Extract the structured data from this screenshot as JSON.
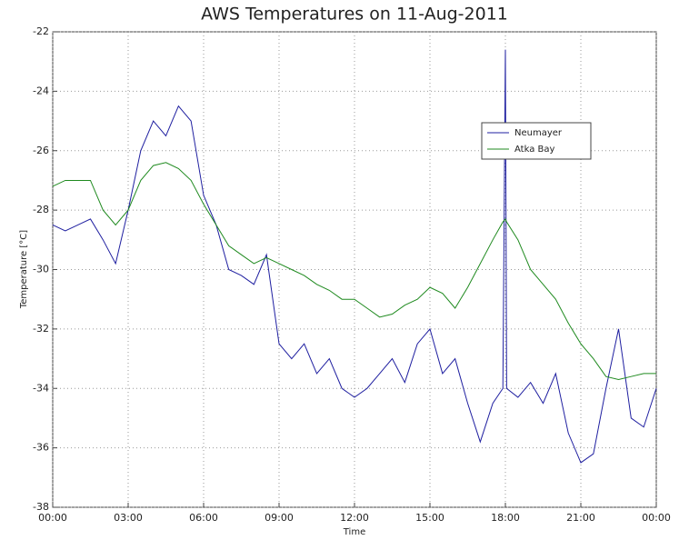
{
  "chart_data": {
    "type": "line",
    "title": "AWS Temperatures on 11-Aug-2011",
    "xlabel": "Time",
    "ylabel": "Temperature [°C]",
    "x": [
      0,
      0.5,
      1,
      1.5,
      2,
      2.5,
      3,
      3.5,
      4,
      4.5,
      5,
      5.5,
      6,
      6.5,
      7,
      7.5,
      8,
      8.5,
      9,
      9.5,
      10,
      10.5,
      11,
      11.5,
      12,
      12.5,
      13,
      13.5,
      14,
      14.5,
      15,
      15.5,
      16,
      16.5,
      17,
      17.5,
      17.9,
      18,
      18.05,
      18.5,
      19,
      19.5,
      20,
      20.5,
      21,
      21.5,
      22,
      22.5,
      23,
      23.5,
      24
    ],
    "series": [
      {
        "name": "Neumayer",
        "color": "#1f1fa0",
        "values": [
          -28.5,
          -28.7,
          -28.5,
          -28.3,
          -29.0,
          -29.8,
          -28.0,
          -26.0,
          -25.0,
          -25.5,
          -24.5,
          -25.0,
          -27.5,
          -28.5,
          -30.0,
          -30.2,
          -30.5,
          -29.5,
          -32.5,
          -33.0,
          -32.5,
          -33.5,
          -33.0,
          -34.0,
          -34.3,
          -34.0,
          -33.5,
          -33.0,
          -33.8,
          -32.5,
          -32.0,
          -33.5,
          -33.0,
          -34.5,
          -35.8,
          -34.5,
          -34.0,
          -22.6,
          -34.0,
          -34.3,
          -33.8,
          -34.5,
          -33.5,
          -35.5,
          -36.5,
          -36.2,
          -34.0,
          -32.0,
          -35.0,
          -35.3,
          -34.0
        ]
      },
      {
        "name": "Atka Bay",
        "color": "#1f8a1f",
        "values": [
          -27.2,
          -27.0,
          -27.0,
          -27.0,
          -28.0,
          -28.5,
          -28.0,
          -27.0,
          -26.5,
          -26.4,
          -26.6,
          -27.0,
          -27.8,
          -28.5,
          -29.2,
          -29.5,
          -29.8,
          -29.6,
          -29.8,
          -30.0,
          -30.2,
          -30.5,
          -30.7,
          -31.0,
          -31.0,
          -31.3,
          -31.6,
          -31.5,
          -31.2,
          -31.0,
          -30.6,
          -30.8,
          -31.3,
          -30.6,
          -29.8,
          -29.0,
          -28.4,
          -28.3,
          -28.4,
          -29.0,
          -30.0,
          -30.5,
          -31.0,
          -31.8,
          -32.5,
          -33.0,
          -33.6,
          -33.7,
          -33.6,
          -33.5,
          -33.5
        ]
      }
    ],
    "xlim": [
      0,
      24
    ],
    "xticks": [
      {
        "value": 0,
        "label": "00:00"
      },
      {
        "value": 3,
        "label": "03:00"
      },
      {
        "value": 6,
        "label": "06:00"
      },
      {
        "value": 9,
        "label": "09:00"
      },
      {
        "value": 12,
        "label": "12:00"
      },
      {
        "value": 15,
        "label": "15:00"
      },
      {
        "value": 18,
        "label": "18:00"
      },
      {
        "value": 21,
        "label": "21:00"
      },
      {
        "value": 24,
        "label": "00:00"
      }
    ],
    "ylim": [
      -38,
      -22
    ],
    "yticks": [
      -38,
      -36,
      -34,
      -32,
      -30,
      -28,
      -26,
      -24,
      -22
    ],
    "grid": true
  }
}
